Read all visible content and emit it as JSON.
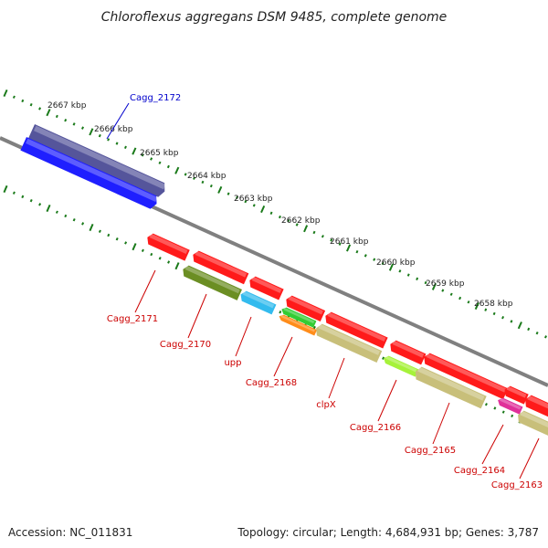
{
  "title": "Chloroflexus aggregans DSM 9485, complete genome",
  "footer": {
    "accession": "Accession: NC_011831",
    "summary": "Topology: circular; Length: 4,684,931 bp; Genes: 3,787"
  },
  "colors": {
    "backbone": "#808080",
    "tick": "#1a7a1a",
    "forward_label": "#0000cc",
    "reverse_label": "#cc0000"
  },
  "ruler_ticks": [
    {
      "label": "2667 kbp"
    },
    {
      "label": "2666 kbp"
    },
    {
      "label": "2665 kbp"
    },
    {
      "label": "2664 kbp"
    },
    {
      "label": "2663 kbp"
    },
    {
      "label": "2662 kbp"
    },
    {
      "label": "2661 kbp"
    },
    {
      "label": "2660 kbp"
    },
    {
      "label": "2659 kbp"
    },
    {
      "label": "2658 kbp"
    }
  ],
  "genes": [
    {
      "id": "Cagg_2172",
      "label": "Cagg_2172",
      "strand": "forward",
      "color": "#55559b"
    },
    {
      "id": "Cagg_2172-cds",
      "label": "",
      "strand": "forward",
      "color": "#1f1fff"
    },
    {
      "id": "Cagg_2171",
      "label": "Cagg_2171",
      "strand": "reverse",
      "color": "#ff1a1a"
    },
    {
      "id": "Cagg_2170",
      "label": "Cagg_2170",
      "strand": "reverse",
      "color": "#ff1a1a"
    },
    {
      "id": "Cagg_2170-cds",
      "label": "",
      "strand": "reverse",
      "color": "#6b8e23"
    },
    {
      "id": "upp",
      "label": "upp",
      "strand": "reverse",
      "color": "#ff1a1a"
    },
    {
      "id": "upp-cds",
      "label": "",
      "strand": "reverse",
      "color": "#33bbee"
    },
    {
      "id": "Cagg_2168",
      "label": "Cagg_2168",
      "strand": "reverse",
      "color": "#ff1a1a"
    },
    {
      "id": "Cagg_2168-cds",
      "label": "",
      "strand": "reverse",
      "color": "#33cc33"
    },
    {
      "id": "Cagg_2168-cds2",
      "label": "",
      "strand": "reverse",
      "color": "#ff8c1a"
    },
    {
      "id": "clpX",
      "label": "clpX",
      "strand": "reverse",
      "color": "#ff1a1a"
    },
    {
      "id": "clpX-cds",
      "label": "",
      "strand": "reverse",
      "color": "#c8bf7a"
    },
    {
      "id": "Cagg_2166",
      "label": "Cagg_2166",
      "strand": "reverse",
      "color": "#ff1a1a"
    },
    {
      "id": "Cagg_2166-cds",
      "label": "",
      "strand": "reverse",
      "color": "#a6f23a"
    },
    {
      "id": "Cagg_2165",
      "label": "Cagg_2165",
      "strand": "reverse",
      "color": "#ff1a1a"
    },
    {
      "id": "Cagg_2165-cds",
      "label": "",
      "strand": "reverse",
      "color": "#c8bf7a"
    },
    {
      "id": "Cagg_2164",
      "label": "Cagg_2164",
      "strand": "reverse",
      "color": "#ff1a1a"
    },
    {
      "id": "Cagg_2164-cds",
      "label": "",
      "strand": "reverse",
      "color": "#e0309a"
    },
    {
      "id": "Cagg_2163",
      "label": "Cagg_2163",
      "strand": "reverse",
      "color": "#ff1a1a"
    },
    {
      "id": "Cagg_2163-cds",
      "label": "",
      "strand": "reverse",
      "color": "#c8bf7a"
    }
  ]
}
